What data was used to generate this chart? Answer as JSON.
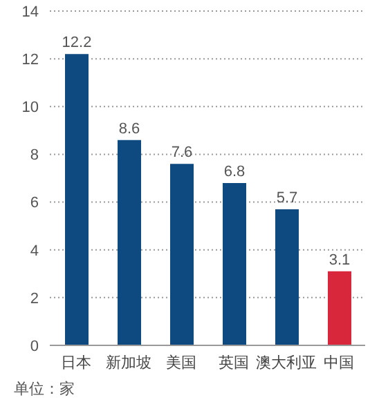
{
  "chart_data": {
    "type": "bar",
    "categories": [
      "日本",
      "新加坡",
      "美国",
      "英国",
      "澳大利亚",
      "中国"
    ],
    "values": [
      12.2,
      8.6,
      7.6,
      6.8,
      5.7,
      3.1
    ],
    "colors": [
      "#0e4a7f",
      "#0e4a7f",
      "#0e4a7f",
      "#0e4a7f",
      "#0e4a7f",
      "#d8263a"
    ],
    "ylim": [
      0,
      14
    ],
    "yticks": [
      0,
      2,
      4,
      6,
      8,
      10,
      12,
      14
    ],
    "grid": "y",
    "data_labels": true,
    "annotations": [
      "单位：家"
    ]
  }
}
